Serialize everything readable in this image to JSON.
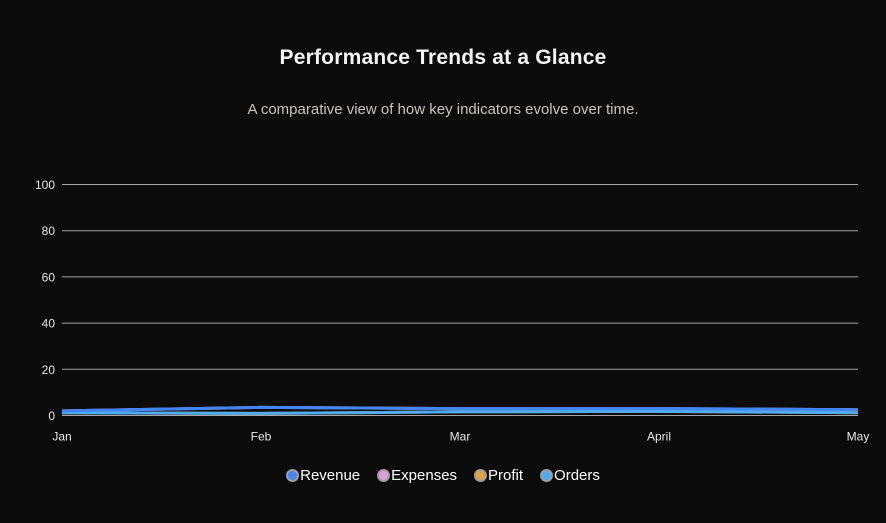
{
  "theme": {
    "background": "#0b0b0b",
    "grid_color": "#a6a6a6",
    "tick_label_color": "#e8e8e8",
    "title_color": "#f4f4f4",
    "subtitle_color": "#c9c6c1",
    "legend_text_color": "#ffffff",
    "legend_ring_color": "#9e9e9e"
  },
  "chart_data": {
    "type": "line",
    "title": "Performance Trends at a Glance",
    "subtitle": "A comparative view of how key indicators evolve over time.",
    "categories": [
      "Jan",
      "Feb",
      "Mar",
      "April",
      "May"
    ],
    "y_ticks": [
      0,
      20,
      40,
      60,
      80,
      100
    ],
    "ylim": [
      0,
      100
    ],
    "grid": true,
    "legend_position": "bottom",
    "series": [
      {
        "name": "Profit",
        "color": "#e0a43a",
        "values": [
          1.2,
          0.9,
          1.6,
          1.8,
          1.2
        ]
      },
      {
        "name": "Expenses",
        "color": "#dda0dd",
        "values": [
          2.0,
          3.5,
          3.0,
          3.0,
          2.5
        ]
      },
      {
        "name": "Orders",
        "color": "#4facf2",
        "values": [
          1.2,
          0.9,
          1.6,
          1.8,
          1.2
        ]
      },
      {
        "name": "Revenue",
        "color": "#4285f4",
        "values": [
          2.0,
          3.5,
          3.0,
          3.0,
          2.5
        ]
      }
    ],
    "legend": [
      {
        "label": "Revenue",
        "color": "#4285f4"
      },
      {
        "label": "Expenses",
        "color": "#dda0dd"
      },
      {
        "label": "Profit",
        "color": "#e0a43a"
      },
      {
        "label": "Orders",
        "color": "#4facf2"
      }
    ]
  }
}
